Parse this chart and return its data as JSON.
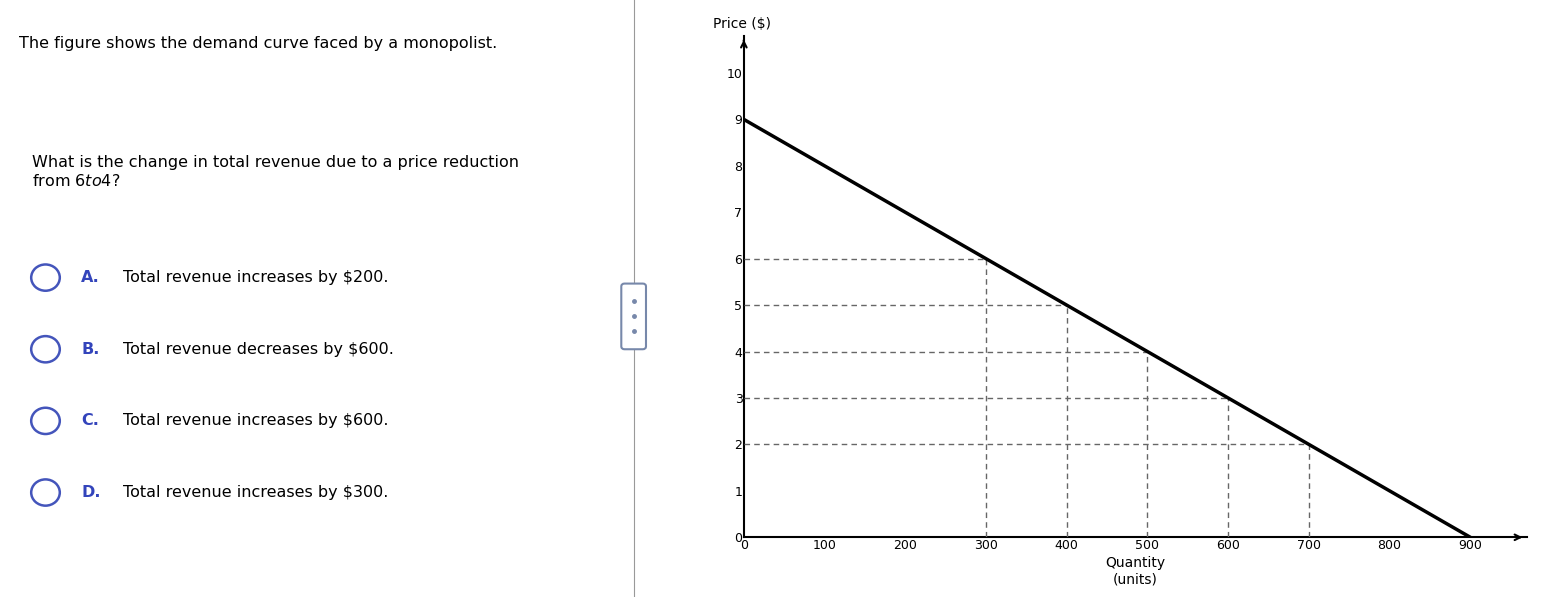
{
  "title_text": "The figure shows the demand curve faced by a monopolist.",
  "question_text": "What is the change in total revenue due to a price reduction\nfrom $6 to $4?",
  "options": [
    {
      "letter": "A.",
      "text": "Total revenue increases by $200."
    },
    {
      "letter": "B.",
      "text": "Total revenue decreases by $600."
    },
    {
      "letter": "C.",
      "text": "Total revenue increases by $600."
    },
    {
      "letter": "D.",
      "text": "Total revenue increases by $300."
    }
  ],
  "demand_curve_x": [
    0,
    900
  ],
  "demand_curve_y": [
    9,
    0
  ],
  "dashed_lines": [
    {
      "x": [
        300,
        300
      ],
      "y": [
        0,
        6
      ]
    },
    {
      "x": [
        0,
        300
      ],
      "y": [
        6,
        6
      ]
    },
    {
      "x": [
        400,
        400
      ],
      "y": [
        0,
        5
      ]
    },
    {
      "x": [
        0,
        400
      ],
      "y": [
        5,
        5
      ]
    },
    {
      "x": [
        500,
        500
      ],
      "y": [
        0,
        4
      ]
    },
    {
      "x": [
        0,
        500
      ],
      "y": [
        4,
        4
      ]
    },
    {
      "x": [
        600,
        600
      ],
      "y": [
        0,
        3
      ]
    },
    {
      "x": [
        0,
        600
      ],
      "y": [
        3,
        3
      ]
    },
    {
      "x": [
        700,
        700
      ],
      "y": [
        0,
        2
      ]
    },
    {
      "x": [
        0,
        700
      ],
      "y": [
        2,
        2
      ]
    }
  ],
  "x_label": "Quantity\n(units)",
  "y_label": "Price ($)",
  "x_ticks": [
    0,
    100,
    200,
    300,
    400,
    500,
    600,
    700,
    800,
    900
  ],
  "y_ticks": [
    0,
    1,
    2,
    3,
    4,
    5,
    6,
    7,
    8,
    9,
    10
  ],
  "xlim": [
    0,
    970
  ],
  "ylim": [
    0,
    10.8
  ],
  "background_color": "#ffffff",
  "text_color": "#000000",
  "option_letter_color": "#3344bb",
  "circle_color": "#4455bb",
  "demand_line_color": "#000000",
  "dashed_line_color": "#666666",
  "divider_color": "#999999",
  "scroll_color": "#7788aa"
}
